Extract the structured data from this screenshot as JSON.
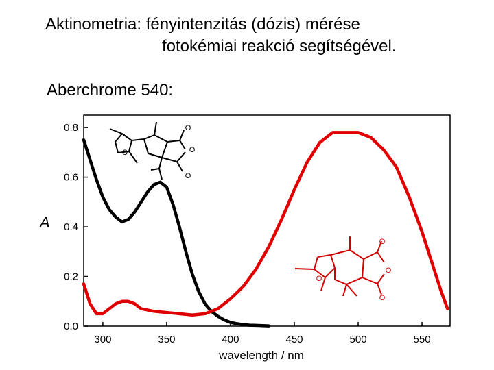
{
  "slide": {
    "title_line1": "Aktinometria: fényintenzitás (dózis) mérése",
    "title_line2": "fotokémiai reakció segítségével.",
    "subtitle": "Aberchrome 540:"
  },
  "chart_data": {
    "type": "line",
    "title": "",
    "xlabel": "wavelength / nm",
    "ylabel": "A",
    "xlim": [
      285,
      572
    ],
    "ylim": [
      0,
      0.85
    ],
    "xticks": [
      300,
      350,
      400,
      450,
      500,
      550
    ],
    "yticks": [
      0.0,
      0.2,
      0.4,
      0.6,
      0.8
    ],
    "ytick_labels": [
      "0.0",
      "0.2",
      "0.4",
      "0.6",
      "0.8"
    ],
    "grid": false,
    "series": [
      {
        "color": "#000000",
        "x": [
          285,
          290,
          295,
          300,
          305,
          310,
          315,
          320,
          325,
          330,
          335,
          340,
          345,
          350,
          355,
          360,
          365,
          370,
          375,
          380,
          385,
          390,
          395,
          400,
          405,
          410,
          415,
          420,
          425,
          430
        ],
        "y": [
          0.75,
          0.67,
          0.59,
          0.52,
          0.47,
          0.44,
          0.42,
          0.43,
          0.46,
          0.5,
          0.54,
          0.57,
          0.58,
          0.56,
          0.49,
          0.4,
          0.3,
          0.21,
          0.14,
          0.09,
          0.06,
          0.04,
          0.025,
          0.015,
          0.01,
          0.006,
          0.004,
          0.003,
          0.002,
          0.001
        ]
      },
      {
        "color": "#e00000",
        "x": [
          285,
          290,
          295,
          300,
          305,
          310,
          315,
          320,
          325,
          330,
          340,
          350,
          360,
          370,
          380,
          390,
          400,
          410,
          420,
          430,
          440,
          450,
          460,
          470,
          480,
          490,
          500,
          510,
          520,
          530,
          540,
          550,
          560,
          565,
          570
        ],
        "y": [
          0.17,
          0.09,
          0.05,
          0.05,
          0.07,
          0.09,
          0.1,
          0.1,
          0.09,
          0.07,
          0.06,
          0.055,
          0.05,
          0.045,
          0.05,
          0.07,
          0.11,
          0.16,
          0.23,
          0.32,
          0.43,
          0.55,
          0.66,
          0.74,
          0.78,
          0.78,
          0.78,
          0.76,
          0.71,
          0.64,
          0.52,
          0.38,
          0.22,
          0.14,
          0.07
        ]
      }
    ]
  },
  "insets": [
    {
      "name": "open-form-structure",
      "atom_labels": [
        "O",
        "O",
        "O"
      ],
      "color": "#000000"
    },
    {
      "name": "closed-form-structure",
      "atom_labels": [
        "O",
        "O",
        "O"
      ],
      "color": "#d00000"
    }
  ]
}
